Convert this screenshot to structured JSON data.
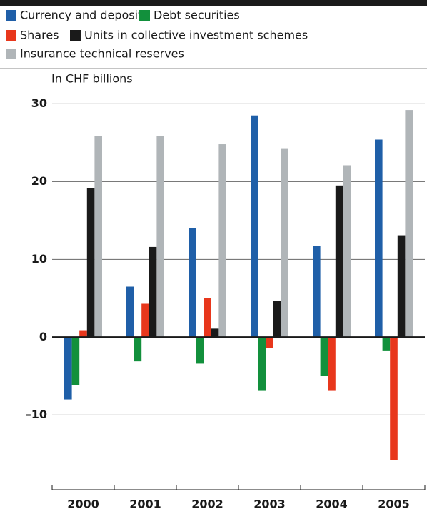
{
  "chart_data": {
    "type": "bar",
    "ylabel": "In CHF billions",
    "categories": [
      "2000",
      "2001",
      "2002",
      "2003",
      "2004",
      "2005"
    ],
    "series": [
      {
        "name": "Currency and deposits",
        "color": "#1f5fa8",
        "values": [
          -8,
          6.5,
          14,
          28.5,
          11.7,
          25.4
        ]
      },
      {
        "name": "Debt securities",
        "color": "#12903c",
        "values": [
          -6.2,
          -3.1,
          -3.4,
          -6.9,
          -5,
          -1.7
        ]
      },
      {
        "name": "Shares",
        "color": "#e8371c",
        "values": [
          0.9,
          4.3,
          5,
          -1.4,
          -6.9,
          -15.8
        ]
      },
      {
        "name": "Units in collective investment schemes",
        "color": "#1a1a1a",
        "values": [
          19.2,
          11.6,
          1.1,
          4.7,
          19.5,
          13.1
        ]
      },
      {
        "name": "Insurance technical reserves",
        "color": "#b0b5b8",
        "values": [
          25.9,
          25.9,
          24.8,
          24.2,
          22.1,
          29.2
        ]
      }
    ],
    "ylim": [
      -19.6,
      31.5
    ],
    "yticks": [
      {
        "value": -10,
        "label": "–10"
      },
      0,
      10,
      20,
      30
    ],
    "grid": true
  }
}
